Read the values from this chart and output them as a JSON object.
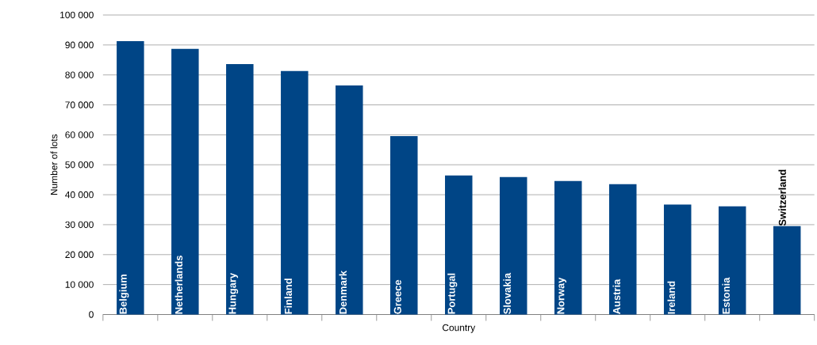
{
  "chart_data": {
    "type": "bar",
    "xlabel": "Country",
    "ylabel": "Number of lots",
    "categories": [
      "Belgium",
      "Netherlands",
      "Hungary",
      "Finland",
      "Denmark",
      "Greece",
      "Portugal",
      "Slovakia",
      "Norway",
      "Austria",
      "Ireland",
      "Estonia",
      "Switzerland"
    ],
    "values": [
      91300,
      88700,
      83600,
      81300,
      76500,
      59600,
      46400,
      45900,
      44600,
      43500,
      36700,
      36100,
      29500
    ],
    "color": "#004586",
    "ylim": [
      0,
      100000
    ],
    "yticks": [
      {
        "value": 0,
        "label": "0"
      },
      {
        "value": 10000,
        "label": "10 000"
      },
      {
        "value": 20000,
        "label": "20 000"
      },
      {
        "value": 30000,
        "label": "30 000"
      },
      {
        "value": 40000,
        "label": "40 000"
      },
      {
        "value": 50000,
        "label": "50 000"
      },
      {
        "value": 60000,
        "label": "60 000"
      },
      {
        "value": 70000,
        "label": "70 000"
      },
      {
        "value": 80000,
        "label": "80 000"
      },
      {
        "value": 90000,
        "label": "90 000"
      },
      {
        "value": 100000,
        "label": "100 000"
      }
    ],
    "grid": "y"
  }
}
